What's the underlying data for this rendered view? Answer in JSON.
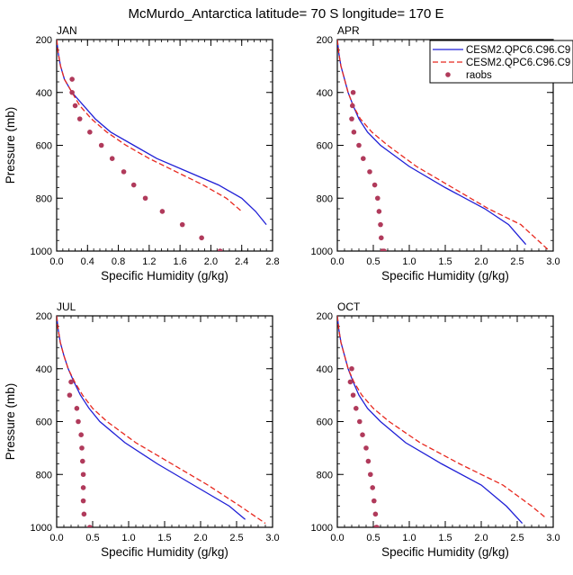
{
  "title": "McMurdo_Antarctica  latitude= 70 S longitude= 170 E",
  "legend": {
    "placement": "top-right of APR panel",
    "entries": [
      {
        "label": "CESM2.QPC6.C96.C9",
        "color": "#1f1fd6",
        "style": "solid"
      },
      {
        "label": "CESM2.QPC6.C96.C9",
        "color": "#e8281e",
        "style": "dashed"
      },
      {
        "label": "raobs",
        "color": "#b03a5b",
        "style": "dots"
      }
    ]
  },
  "chart_data": [
    {
      "type": "line",
      "panel": "JAN",
      "xlabel": "Specific Humidity (g/kg)",
      "ylabel": "Pressure (mb)",
      "xlim": [
        0,
        2.8
      ],
      "ylim": [
        1000,
        200
      ],
      "xticks": [
        "0.0",
        "0.4",
        "0.8",
        "1.2",
        "1.6",
        "2.0",
        "2.4",
        "2.8"
      ],
      "xtick_values": [
        0,
        0.4,
        0.8,
        1.2,
        1.6,
        2.0,
        2.4,
        2.8
      ],
      "yticks": [
        "200",
        "400",
        "600",
        "800",
        "1000"
      ],
      "ytick_values": [
        200,
        400,
        600,
        800,
        1000
      ],
      "series": [
        {
          "x": [
            0.0,
            0.02,
            0.05,
            0.1,
            0.2,
            0.35,
            0.5,
            0.7,
            1.0,
            1.3,
            1.7,
            2.1,
            2.4,
            2.58,
            2.72
          ],
          "y": [
            200,
            250,
            300,
            350,
            400,
            450,
            500,
            550,
            600,
            650,
            700,
            750,
            800,
            850,
            900
          ]
        },
        {
          "x": [
            0.0,
            0.02,
            0.05,
            0.1,
            0.2,
            0.3,
            0.45,
            0.65,
            0.9,
            1.2,
            1.55,
            1.9,
            2.2,
            2.4
          ],
          "y": [
            200,
            250,
            300,
            350,
            400,
            450,
            500,
            550,
            600,
            650,
            700,
            750,
            800,
            850
          ]
        },
        {
          "x": [
            0.2,
            0.2,
            0.24,
            0.3,
            0.43,
            0.58,
            0.72,
            0.87,
            1.0,
            1.15,
            1.37,
            1.63,
            1.88,
            2.12
          ],
          "y": [
            350,
            400,
            450,
            500,
            550,
            600,
            650,
            700,
            750,
            800,
            850,
            900,
            950,
            1000
          ]
        }
      ]
    },
    {
      "type": "line",
      "panel": "APR",
      "xlabel": "Specific Humidity (g/kg)",
      "ylabel": "",
      "xlim": [
        0,
        3.0
      ],
      "ylim": [
        1000,
        200
      ],
      "xticks": [
        "0.0",
        "0.5",
        "1.0",
        "1.5",
        "2.0",
        "2.5",
        "3.0"
      ],
      "xtick_values": [
        0,
        0.5,
        1.0,
        1.5,
        2.0,
        2.5,
        3.0
      ],
      "yticks": [
        "200",
        "400",
        "600",
        "800",
        "1000"
      ],
      "ytick_values": [
        200,
        400,
        600,
        800,
        1000
      ],
      "series": [
        {
          "x": [
            0.0,
            0.02,
            0.05,
            0.1,
            0.15,
            0.22,
            0.3,
            0.42,
            0.6,
            1.0,
            1.5,
            2.05,
            2.38,
            2.62
          ],
          "y": [
            200,
            250,
            300,
            350,
            400,
            450,
            500,
            550,
            600,
            680,
            760,
            840,
            900,
            975
          ]
        },
        {
          "x": [
            0.0,
            0.02,
            0.05,
            0.1,
            0.15,
            0.22,
            0.32,
            0.48,
            0.7,
            1.1,
            1.6,
            2.1,
            2.55,
            2.95
          ],
          "y": [
            200,
            250,
            300,
            350,
            400,
            450,
            500,
            550,
            600,
            680,
            760,
            840,
            900,
            1000
          ]
        },
        {
          "x": [
            0.22,
            0.21,
            0.2,
            0.23,
            0.3,
            0.36,
            0.45,
            0.52,
            0.56,
            0.58,
            0.6,
            0.61,
            0.63,
            0.65
          ],
          "y": [
            400,
            450,
            500,
            550,
            600,
            650,
            700,
            750,
            800,
            850,
            900,
            950,
            1000,
            1000
          ]
        }
      ]
    },
    {
      "type": "line",
      "panel": "JUL",
      "xlabel": "Specific Humidity (g/kg)",
      "ylabel": "Pressure (mb)",
      "xlim": [
        0,
        3.0
      ],
      "ylim": [
        1000,
        200
      ],
      "xticks": [
        "0.0",
        "0.5",
        "1.0",
        "1.5",
        "2.0",
        "2.5",
        "3.0"
      ],
      "xtick_values": [
        0,
        0.5,
        1.0,
        1.5,
        2.0,
        2.5,
        3.0
      ],
      "yticks": [
        "200",
        "400",
        "600",
        "800",
        "1000"
      ],
      "ytick_values": [
        200,
        400,
        600,
        800,
        1000
      ],
      "series": [
        {
          "x": [
            0.0,
            0.02,
            0.05,
            0.1,
            0.16,
            0.24,
            0.33,
            0.45,
            0.6,
            0.95,
            1.4,
            1.9,
            2.4,
            2.62
          ],
          "y": [
            200,
            250,
            300,
            350,
            400,
            450,
            500,
            550,
            600,
            680,
            760,
            840,
            920,
            970
          ]
        },
        {
          "x": [
            0.0,
            0.02,
            0.05,
            0.1,
            0.16,
            0.25,
            0.36,
            0.5,
            0.7,
            1.1,
            1.6,
            2.1,
            2.55,
            2.9
          ],
          "y": [
            200,
            250,
            300,
            350,
            400,
            450,
            500,
            550,
            600,
            680,
            760,
            840,
            920,
            985
          ]
        },
        {
          "x": [
            0.2,
            0.18,
            0.28,
            0.3,
            0.34,
            0.35,
            0.36,
            0.37,
            0.37,
            0.37,
            0.38,
            0.46
          ],
          "y": [
            450,
            500,
            550,
            600,
            650,
            700,
            750,
            800,
            850,
            900,
            950,
            1000
          ]
        }
      ]
    },
    {
      "type": "line",
      "panel": "OCT",
      "xlabel": "Specific Humidity (g/kg)",
      "ylabel": "",
      "xlim": [
        0,
        3.0
      ],
      "ylim": [
        1000,
        200
      ],
      "xticks": [
        "0.0",
        "0.5",
        "1.0",
        "1.5",
        "2.0",
        "2.5",
        "3.0"
      ],
      "xtick_values": [
        0,
        0.5,
        1.0,
        1.5,
        2.0,
        2.5,
        3.0
      ],
      "yticks": [
        "200",
        "400",
        "600",
        "800",
        "1000"
      ],
      "ytick_values": [
        200,
        400,
        600,
        800,
        1000
      ],
      "series": [
        {
          "x": [
            0.0,
            0.02,
            0.05,
            0.1,
            0.15,
            0.22,
            0.3,
            0.42,
            0.6,
            0.95,
            1.45,
            2.0,
            2.35,
            2.57
          ],
          "y": [
            200,
            250,
            300,
            350,
            400,
            450,
            500,
            550,
            600,
            680,
            760,
            840,
            920,
            985
          ]
        },
        {
          "x": [
            0.0,
            0.02,
            0.05,
            0.1,
            0.15,
            0.23,
            0.34,
            0.5,
            0.72,
            1.15,
            1.7,
            2.3,
            2.7,
            2.9
          ],
          "y": [
            200,
            250,
            300,
            350,
            400,
            450,
            500,
            550,
            600,
            680,
            760,
            840,
            920,
            965
          ]
        },
        {
          "x": [
            0.2,
            0.18,
            0.22,
            0.26,
            0.31,
            0.35,
            0.4,
            0.43,
            0.46,
            0.49,
            0.51,
            0.53,
            0.54,
            0.55
          ],
          "y": [
            400,
            450,
            500,
            550,
            600,
            650,
            700,
            750,
            800,
            850,
            900,
            950,
            1000,
            1000
          ]
        }
      ]
    }
  ]
}
